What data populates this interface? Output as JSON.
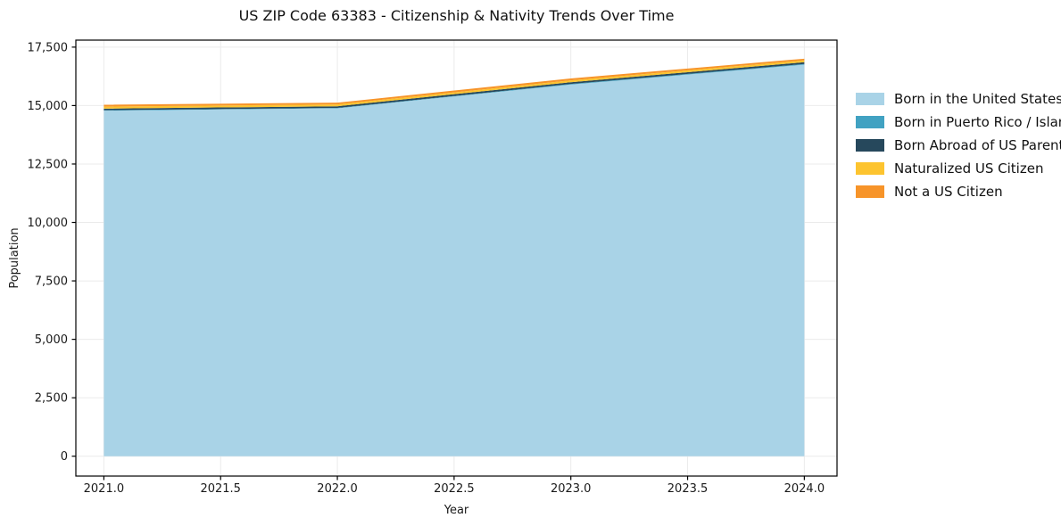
{
  "chart_data": {
    "type": "area",
    "stacked": true,
    "title": "US ZIP Code 63383 - Citizenship & Nativity Trends Over Time",
    "xlabel": "Year",
    "ylabel": "Population",
    "x": [
      2021,
      2022,
      2023,
      2024
    ],
    "series": [
      {
        "name": "Born in the United States",
        "color": "#a9d3e7",
        "values": [
          14780,
          14880,
          15900,
          16750
        ]
      },
      {
        "name": "Born in Puerto Rico / Islands",
        "color": "#41a2c2",
        "values": [
          20,
          20,
          25,
          30
        ]
      },
      {
        "name": "Born Abroad of US Parent(s)",
        "color": "#26485c",
        "values": [
          70,
          70,
          75,
          75
        ]
      },
      {
        "name": "Naturalized US Citizen",
        "color": "#fdc42f",
        "values": [
          85,
          80,
          80,
          80
        ]
      },
      {
        "name": "Not a US Citizen",
        "color": "#f79429",
        "values": [
          80,
          75,
          80,
          70
        ]
      }
    ],
    "xlim": [
      2020.88,
      2024.14
    ],
    "ylim": [
      -850,
      17800
    ],
    "xticks": [
      2021.0,
      2021.5,
      2022.0,
      2022.5,
      2023.0,
      2023.5,
      2024.0
    ],
    "yticks": [
      0,
      2500,
      5000,
      7500,
      10000,
      12500,
      15000,
      17500
    ],
    "grid": true,
    "grid_color": "#ebebeb",
    "spine_color": "#000000",
    "tick_label_color": "#1a1a1a",
    "legend_position": "right"
  }
}
